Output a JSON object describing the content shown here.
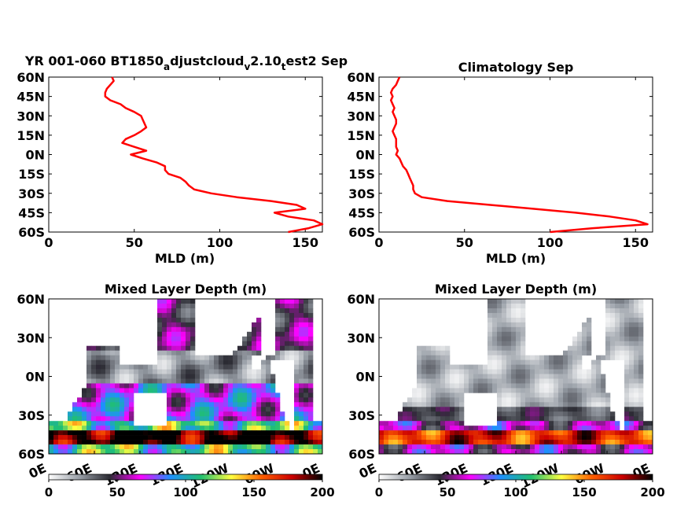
{
  "chart_data": [
    {
      "type": "line",
      "title_parts": [
        "YR 001-060 BT1850",
        "a",
        "djustcloud",
        "v",
        "2.10",
        "t",
        "est2 Sep"
      ],
      "xlabel": "MLD (m)",
      "ylabel": "",
      "xlim": [
        0,
        160
      ],
      "ylim": [
        -60,
        60
      ],
      "x_ticks": [
        0,
        50,
        100,
        150
      ],
      "y_ticks": [
        60,
        45,
        30,
        15,
        0,
        -15,
        -30,
        -45,
        -60
      ],
      "y_tick_labels": [
        "60N",
        "45N",
        "30N",
        "15N",
        "0N",
        "15S",
        "30S",
        "45S",
        "60S"
      ],
      "line_color": "#ff0000",
      "series": [
        {
          "lat": [
            60,
            57,
            54,
            51,
            48,
            45,
            42,
            39,
            36,
            33,
            30,
            27,
            24,
            21,
            18,
            15,
            12,
            9,
            6,
            3,
            0,
            -3,
            -6,
            -9,
            -12,
            -15,
            -18,
            -21,
            -24,
            -27,
            -30,
            -33,
            -36,
            -39,
            -42,
            -45,
            -48,
            -51,
            -54,
            -57,
            -60
          ],
          "mld": [
            37,
            38,
            36,
            34,
            33,
            33,
            36,
            42,
            45,
            50,
            54,
            55,
            56,
            57,
            54,
            50,
            45,
            43,
            50,
            57,
            48,
            55,
            63,
            68,
            68,
            70,
            77,
            80,
            82,
            85,
            95,
            110,
            130,
            145,
            150,
            132,
            140,
            155,
            160,
            152,
            140
          ]
        }
      ]
    },
    {
      "type": "line",
      "title": "Climatology Sep",
      "xlabel": "MLD (m)",
      "ylabel": "",
      "xlim": [
        0,
        160
      ],
      "ylim": [
        -60,
        60
      ],
      "x_ticks": [
        0,
        50,
        100,
        150
      ],
      "y_ticks": [
        60,
        45,
        30,
        15,
        0,
        -15,
        -30,
        -45,
        -60
      ],
      "y_tick_labels": [
        "60N",
        "45N",
        "30N",
        "15N",
        "0N",
        "15S",
        "30S",
        "45S",
        "60S"
      ],
      "line_color": "#ff0000",
      "series": [
        {
          "lat": [
            60,
            57,
            54,
            51,
            48,
            45,
            42,
            39,
            36,
            33,
            30,
            27,
            24,
            21,
            18,
            15,
            12,
            9,
            6,
            3,
            0,
            -3,
            -6,
            -9,
            -12,
            -15,
            -18,
            -21,
            -24,
            -27,
            -30,
            -33,
            -36,
            -39,
            -42,
            -45,
            -48,
            -51,
            -54,
            -57,
            -60
          ],
          "mld": [
            12,
            11,
            10,
            8,
            7,
            8,
            7,
            8,
            9,
            8,
            9,
            10,
            10,
            9,
            8,
            9,
            10,
            10,
            10,
            11,
            10,
            12,
            13,
            14,
            16,
            17,
            18,
            19,
            20,
            20,
            21,
            25,
            40,
            65,
            90,
            115,
            135,
            150,
            157,
            125,
            100
          ]
        }
      ]
    },
    {
      "type": "heatmap",
      "title": "Mixed Layer Depth (m)",
      "x_tick_labels": [
        "0E",
        "60E",
        "120E",
        "180E",
        "120W",
        "60W",
        "0E"
      ],
      "y_tick_labels": [
        "60N",
        "30N",
        "0N",
        "30S",
        "60S"
      ],
      "ylim": [
        -60,
        60
      ],
      "colorbar": {
        "ticks": [
          0,
          50,
          100,
          150,
          200
        ],
        "range": [
          0,
          200
        ]
      }
    },
    {
      "type": "heatmap",
      "title": "Mixed Layer Depth (m)",
      "x_tick_labels": [
        "0E",
        "60E",
        "120E",
        "180E",
        "120W",
        "60W",
        "0E"
      ],
      "y_tick_labels": [
        "60N",
        "30N",
        "0N",
        "30S",
        "60S"
      ],
      "ylim": [
        -60,
        60
      ],
      "colorbar": {
        "ticks": [
          0,
          50,
          100,
          150,
          200
        ],
        "range": [
          0,
          200
        ]
      }
    }
  ],
  "colormap": [
    "#ffffff",
    "#9aa0a8",
    "#2b2b33",
    "#ff00ff",
    "#1e90ff",
    "#20c070",
    "#ffff40",
    "#ff6000",
    "#cc0000",
    "#000000"
  ]
}
